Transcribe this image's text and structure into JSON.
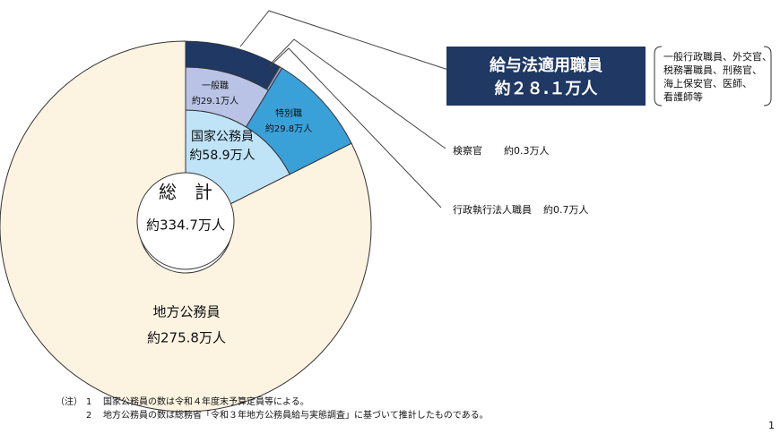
{
  "chart_data": {
    "type": "nested-pie",
    "total": {
      "label": "総　計",
      "value": 334.7,
      "value_label": "約334.7万人"
    },
    "categories": [
      "国家公務員",
      "地方公務員"
    ],
    "values": [
      58.9,
      275.8
    ],
    "value_labels": [
      "約58.9万人",
      "約275.8万人"
    ],
    "colors": [
      "#bfe3f7",
      "#fdf3e1"
    ],
    "breakdown": [
      {
        "name": "一般職",
        "value": 29.1,
        "value_label": "約29.1万人",
        "color": "#b9c3e6",
        "breakdown": [
          {
            "name": "給与法適用職員",
            "value": 28.1,
            "value_label": "約２８.１万人",
            "color": "#1f3864"
          },
          {
            "name": "検察官",
            "value": 0.3,
            "value_label": "約0.3万人",
            "color": "#4a6aa8"
          },
          {
            "name": "行政執行法人職員",
            "value": 0.7,
            "value_label": "約0.7万人",
            "color": "#8ea2d2"
          }
        ]
      },
      {
        "name": "特別職",
        "value": 29.8,
        "value_label": "約29.8万人",
        "color": "#3aa0d8"
      }
    ],
    "box_note": [
      "一般行政職員、外交官、",
      "税務署職員、刑務官、",
      "海上保安官、医師、",
      "看護師等"
    ],
    "notes_prefix": "（注）",
    "notes": [
      {
        "number": "1",
        "text": "国家公務員の数は令和４年度末予算定員等による。"
      },
      {
        "number": "2",
        "text": "地方公務員の数は総務省「令和３年地方公務員給与実態調査」に基づいて推計したものである。"
      }
    ],
    "page_number": "1"
  }
}
